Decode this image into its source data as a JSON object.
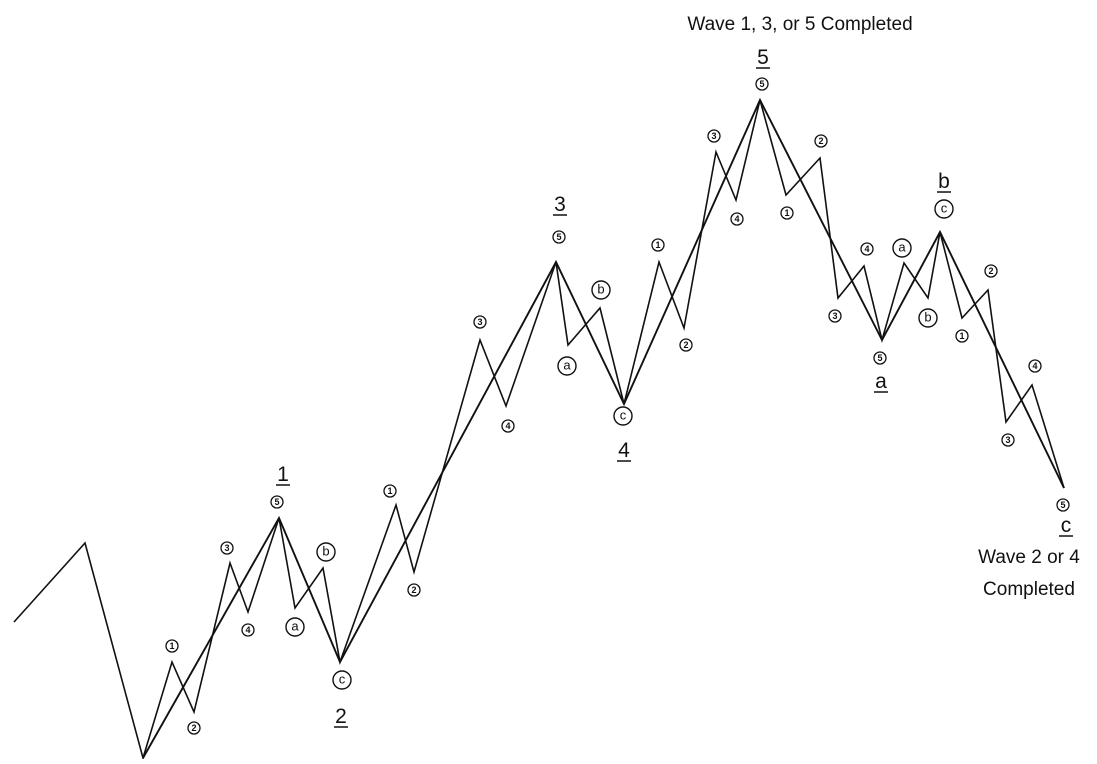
{
  "diagram": {
    "captions": {
      "top": "Wave 1, 3, or 5 Completed",
      "bottom_line1": "Wave 2 or 4",
      "bottom_line2": "Completed"
    },
    "major_labels": [
      "1",
      "2",
      "3",
      "4",
      "5",
      "a",
      "b",
      "c"
    ],
    "minor_labels": [
      "1",
      "2",
      "3",
      "4",
      "5"
    ],
    "correction_labels": [
      "a",
      "b",
      "c"
    ]
  }
}
